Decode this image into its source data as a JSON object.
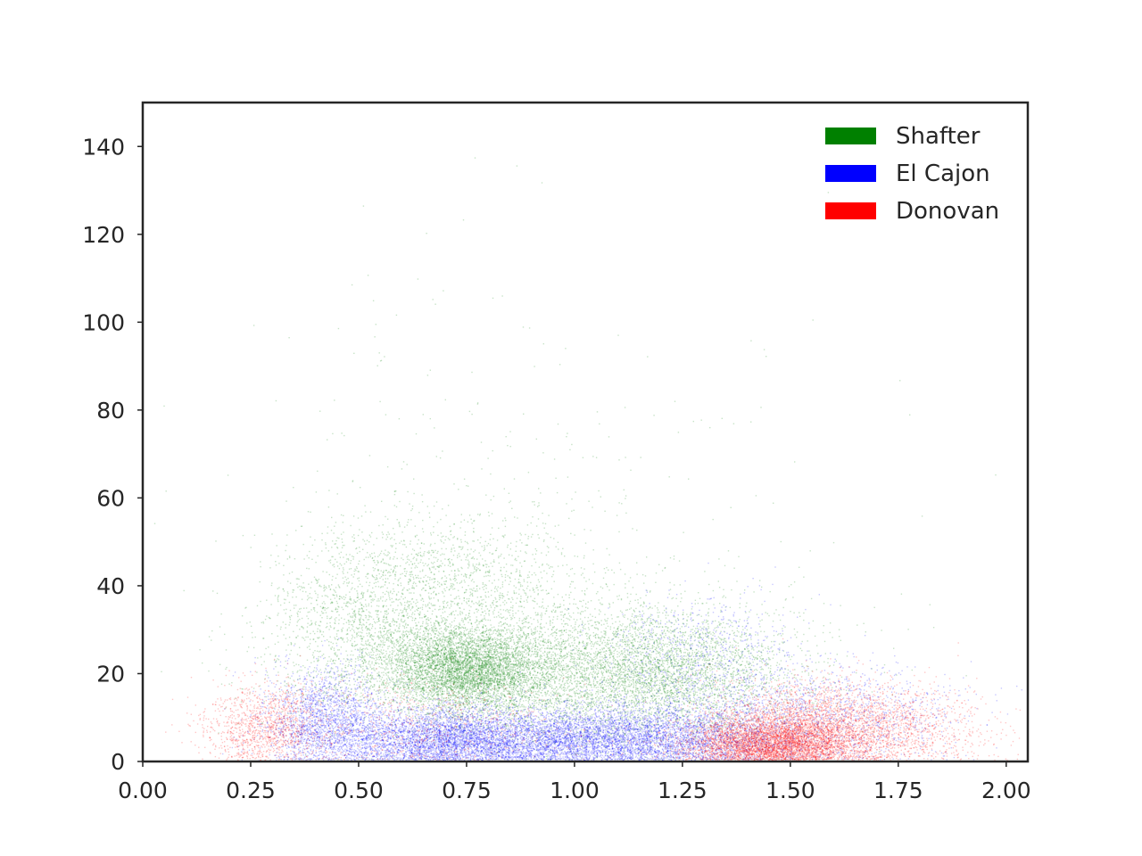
{
  "chart_data": {
    "type": "scatter",
    "title": "",
    "xlabel": "",
    "ylabel": "",
    "xlim": [
      0.0,
      2.05
    ],
    "ylim": [
      0,
      150
    ],
    "xticks": [
      0.0,
      0.25,
      0.5,
      0.75,
      1.0,
      1.25,
      1.5,
      1.75,
      2.0
    ],
    "xtick_labels": [
      "0.00",
      "0.25",
      "0.50",
      "0.75",
      "1.00",
      "1.25",
      "1.50",
      "1.75",
      "2.00"
    ],
    "yticks": [
      0,
      20,
      40,
      60,
      80,
      100,
      120,
      140
    ],
    "ytick_labels": [
      "0",
      "20",
      "40",
      "60",
      "80",
      "100",
      "120",
      "140"
    ],
    "grid": false,
    "legend": {
      "position": "top-right",
      "entries": [
        "Shafter",
        "El Cajon",
        "Donovan"
      ]
    },
    "series": [
      {
        "name": "Shafter",
        "color": "#008000",
        "clusters": [
          {
            "x_center": 0.75,
            "y_center": 21,
            "x_spread": 0.1,
            "y_spread": 5,
            "count": 5000
          },
          {
            "x_center": 1.0,
            "y_center": 20,
            "x_spread": 0.25,
            "y_spread": 9,
            "count": 4000
          },
          {
            "x_center": 1.2,
            "y_center": 20,
            "x_spread": 0.14,
            "y_spread": 7,
            "count": 2500
          },
          {
            "x_center": 0.5,
            "y_center": 30,
            "x_spread": 0.12,
            "y_spread": 10,
            "count": 1500
          },
          {
            "x_center": 0.72,
            "y_center": 42,
            "x_spread": 0.16,
            "y_spread": 8,
            "count": 1200
          },
          {
            "x_center": 0.85,
            "y_center": 60,
            "x_spread": 0.35,
            "y_spread": 25,
            "count": 250
          }
        ]
      },
      {
        "name": "El Cajon",
        "color": "#0000ff",
        "clusters": [
          {
            "x_center": 0.7,
            "y_center": 5,
            "x_spread": 0.12,
            "y_spread": 3.5,
            "count": 4000
          },
          {
            "x_center": 0.42,
            "y_center": 9,
            "x_spread": 0.07,
            "y_spread": 6,
            "count": 2000
          },
          {
            "x_center": 1.0,
            "y_center": 5,
            "x_spread": 0.15,
            "y_spread": 3.5,
            "count": 3500
          },
          {
            "x_center": 1.25,
            "y_center": 5,
            "x_spread": 0.15,
            "y_spread": 4,
            "count": 2500
          },
          {
            "x_center": 1.6,
            "y_center": 10,
            "x_spread": 0.15,
            "y_spread": 6,
            "count": 1200
          },
          {
            "x_center": 1.3,
            "y_center": 22,
            "x_spread": 0.12,
            "y_spread": 8,
            "count": 800
          }
        ]
      },
      {
        "name": "Donovan",
        "color": "#ff0000",
        "clusters": [
          {
            "x_center": 1.45,
            "y_center": 4,
            "x_spread": 0.1,
            "y_spread": 3,
            "count": 4000
          },
          {
            "x_center": 1.55,
            "y_center": 8,
            "x_spread": 0.12,
            "y_spread": 5,
            "count": 2500
          },
          {
            "x_center": 0.28,
            "y_center": 8,
            "x_spread": 0.07,
            "y_spread": 5,
            "count": 1200
          },
          {
            "x_center": 0.65,
            "y_center": 8,
            "x_spread": 0.18,
            "y_spread": 5,
            "count": 700
          },
          {
            "x_center": 1.75,
            "y_center": 7,
            "x_spread": 0.12,
            "y_spread": 5,
            "count": 900
          }
        ]
      }
    ]
  }
}
